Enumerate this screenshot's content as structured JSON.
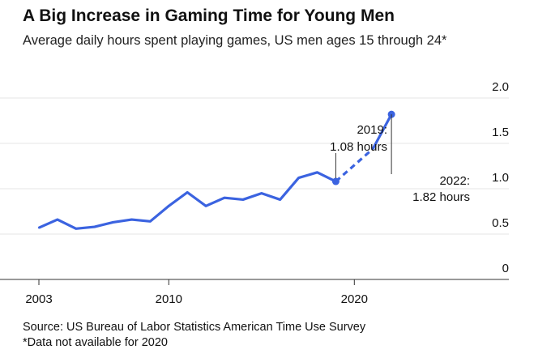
{
  "chart_data": {
    "type": "line",
    "title": "A Big Increase in Gaming Time for Young Men",
    "subtitle": "Average daily hours spent playing games, US men ages 15 through 24*",
    "xlabel": "",
    "ylabel": "",
    "x": [
      2003,
      2004,
      2005,
      2006,
      2007,
      2008,
      2009,
      2010,
      2011,
      2012,
      2013,
      2014,
      2015,
      2016,
      2017,
      2018,
      2019,
      2021,
      2022
    ],
    "values": [
      0.57,
      0.66,
      0.56,
      0.58,
      0.63,
      0.66,
      0.64,
      0.81,
      0.96,
      0.81,
      0.9,
      0.88,
      0.95,
      0.88,
      1.12,
      1.18,
      1.08,
      1.44,
      1.82
    ],
    "dashed_segment": [
      2019,
      2021
    ],
    "xlim": [
      2003,
      2025
    ],
    "ylim": [
      0,
      2.0
    ],
    "xticks": [
      "2003",
      "2010",
      "2020"
    ],
    "yticks": [
      "0",
      "0.5",
      "1.0",
      "1.5",
      "2.0"
    ],
    "grid": true,
    "color": "#3b63e0",
    "annotations": [
      {
        "year": 2019,
        "line1": "2019:",
        "line2": "1.08 hours"
      },
      {
        "year": 2022,
        "line1": "2022:",
        "line2": "1.82 hours"
      }
    ]
  },
  "footer": {
    "source": "Source: US Bureau of Labor Statistics American Time Use Survey",
    "note": "*Data not available for 2020"
  }
}
